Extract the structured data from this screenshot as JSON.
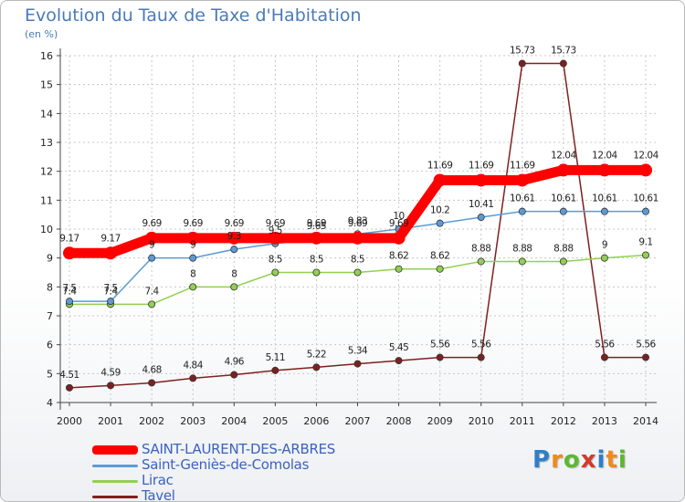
{
  "title": "Evolution du Taux de Taxe d'Habitation",
  "subtitle": "(en %)",
  "logo": {
    "text": "Proxiti",
    "colors": [
      "#2e7fc8",
      "#f08a1c",
      "#5cb82e",
      "#d23a2a",
      "#2e7fc8",
      "#f08a1c",
      "#5cb82e"
    ]
  },
  "chart_data": {
    "type": "line",
    "x": [
      "2000",
      "2001",
      "2002",
      "2003",
      "2004",
      "2005",
      "2006",
      "2007",
      "2008",
      "2009",
      "2010",
      "2011",
      "2012",
      "2013",
      "2014"
    ],
    "ylim": [
      4,
      16
    ],
    "yticks": [
      4,
      5,
      6,
      7,
      8,
      9,
      10,
      11,
      12,
      13,
      14,
      15,
      16
    ],
    "grid": true,
    "legend_position": "bottom-left",
    "series": [
      {
        "name": "SAINT-LAURENT-DES-ARBRES",
        "color": "#ff0000",
        "bold": true,
        "values": [
          9.17,
          9.17,
          9.69,
          9.69,
          9.69,
          9.69,
          9.69,
          9.69,
          9.69,
          11.69,
          11.69,
          11.69,
          12.04,
          12.04,
          12.04
        ],
        "labels": [
          "9.17",
          "9.17",
          "9.69",
          "9.69",
          "9.69",
          "9.69",
          "9.69",
          "9.69",
          "9.69",
          "11.69",
          "11.69",
          "11.69",
          "12.04",
          "12.04",
          "12.04"
        ]
      },
      {
        "name": "Saint-Geniès-de-Comolas",
        "color": "#5b9bd5",
        "values": [
          7.5,
          7.5,
          9.0,
          9.0,
          9.3,
          9.5,
          9.65,
          9.83,
          10.0,
          10.2,
          10.41,
          10.61,
          10.61,
          10.61,
          10.61
        ],
        "labels": [
          "7.5",
          "7.5",
          "9",
          "9",
          "9.3",
          "9.5",
          "9.65",
          "9.83",
          "10",
          "10.2",
          "10.41",
          "10.61",
          "10.61",
          "10.61",
          "10.61"
        ]
      },
      {
        "name": "Lirac",
        "color": "#92d050",
        "values": [
          7.4,
          7.4,
          7.4,
          8.0,
          8.0,
          8.5,
          8.5,
          8.5,
          8.62,
          8.62,
          8.88,
          8.88,
          8.88,
          9.0,
          9.1
        ],
        "labels": [
          "7.4",
          "7.4",
          "7.4",
          "8",
          "8",
          "8.5",
          "8.5",
          "8.5",
          "8.62",
          "8.62",
          "8.88",
          "8.88",
          "8.88",
          "9",
          "9.1"
        ]
      },
      {
        "name": "Tavel",
        "color": "#7f2020",
        "values": [
          4.51,
          4.59,
          4.68,
          4.84,
          4.96,
          5.11,
          5.22,
          5.34,
          5.45,
          5.56,
          5.56,
          15.73,
          15.73,
          5.56,
          5.56
        ],
        "labels": [
          "4.51",
          "4.59",
          "4.68",
          "4.84",
          "4.96",
          "5.11",
          "5.22",
          "5.34",
          "5.45",
          "5.56",
          "5.56",
          "15.73",
          "15.73",
          "5.56",
          "5.56"
        ]
      }
    ]
  }
}
